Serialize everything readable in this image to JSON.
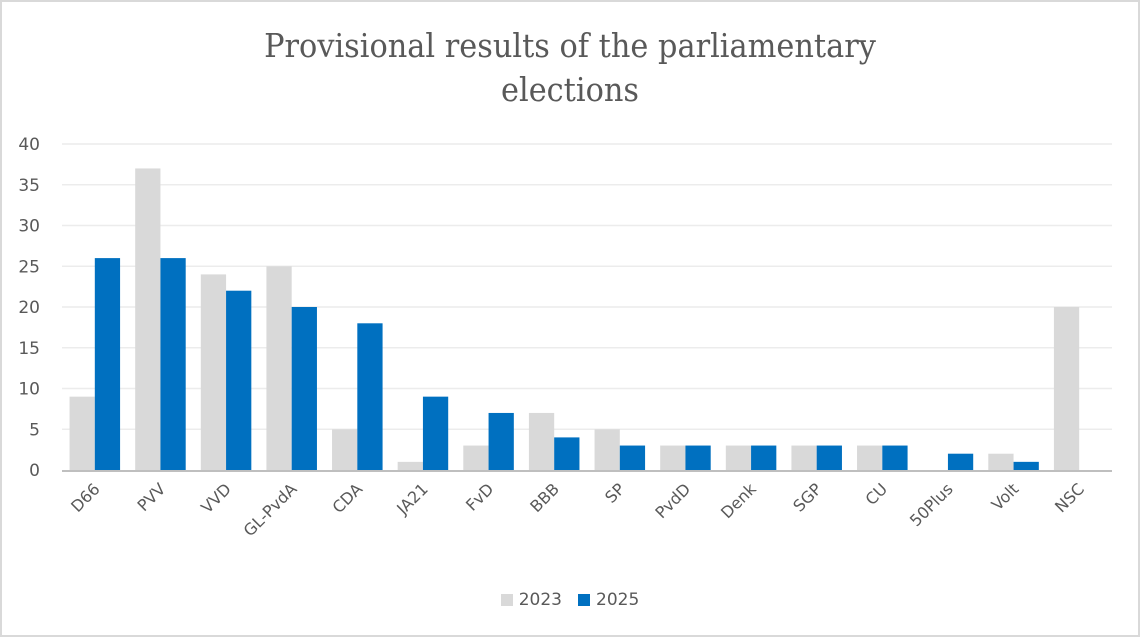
{
  "chart_data": {
    "type": "bar",
    "title": "Provisional results of the parliamentary elections",
    "title_lines": [
      "Provisional results of the parliamentary",
      "elections"
    ],
    "xlabel": "",
    "ylabel": "",
    "ylim": [
      0,
      40
    ],
    "yticks": [
      0,
      5,
      10,
      15,
      20,
      25,
      30,
      35,
      40
    ],
    "grid": true,
    "legend_position": "bottom",
    "categories": [
      "D66",
      "PVV",
      "VVD",
      "GL-PvdA",
      "CDA",
      "JA21",
      "FvD",
      "BBB",
      "SP",
      "PvdD",
      "Denk",
      "SGP",
      "CU",
      "50Plus",
      "Volt",
      "NSC"
    ],
    "series": [
      {
        "name": "2023",
        "color": "#d9d9d9",
        "values": [
          9,
          37,
          24,
          25,
          5,
          1,
          3,
          7,
          5,
          3,
          3,
          3,
          3,
          0,
          2,
          20
        ]
      },
      {
        "name": "2025",
        "color": "#0070c0",
        "values": [
          26,
          26,
          22,
          20,
          18,
          9,
          7,
          4,
          3,
          3,
          3,
          3,
          3,
          2,
          1,
          0
        ]
      }
    ]
  }
}
